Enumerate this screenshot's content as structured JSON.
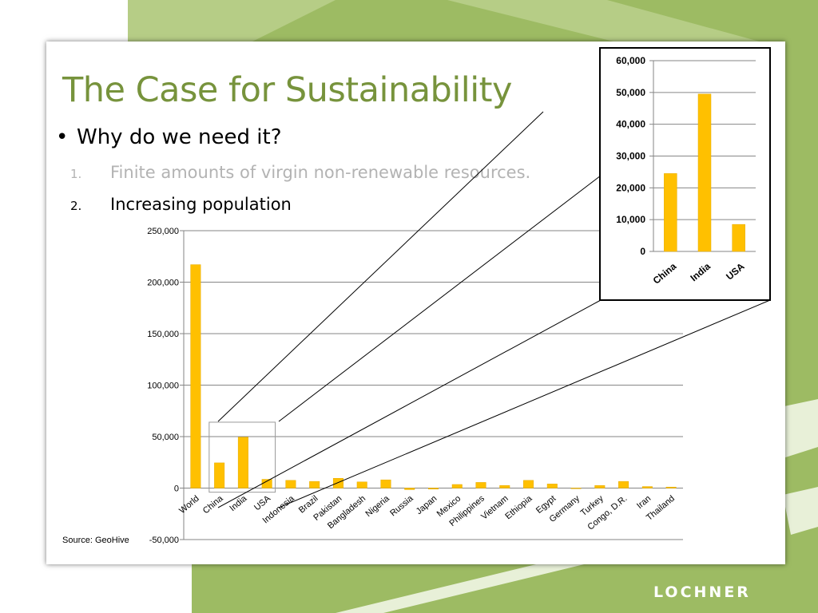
{
  "slide": {
    "title": "The Case for Sustainability",
    "bullet": "Why do we need it?",
    "items": [
      {
        "num": "1.",
        "text": "Finite amounts of virgin non-renewable resources."
      },
      {
        "num": "2.",
        "text": "Increasing  population"
      }
    ],
    "source": "Source: GeoHive",
    "brand": "LOCHNER"
  },
  "colors": {
    "accent": "#77933c",
    "bar": "#ffc000",
    "background": "#9dbb63"
  },
  "chart_data": [
    {
      "type": "bar",
      "categories": [
        "World",
        "China",
        "India",
        "USA",
        "Indonesia",
        "Brazil",
        "Pakistan",
        "Bangladesh",
        "Nigeria",
        "Russia",
        "Japan",
        "Mexico",
        "Philippines",
        "Vietnam",
        "Ethiopia",
        "Egypt",
        "Germany",
        "Turkey",
        "Congo, D.R.",
        "Iran",
        "Thailand"
      ],
      "values": [
        217000,
        24500,
        49500,
        8500,
        7500,
        6500,
        9500,
        6000,
        8000,
        -1500,
        -1000,
        3500,
        5500,
        2500,
        7500,
        4000,
        -500,
        2500,
        6500,
        1500,
        1000
      ],
      "ylim": [
        -50000,
        250000
      ],
      "yticks": [
        -50000,
        0,
        50000,
        100000,
        150000,
        200000,
        250000
      ],
      "ytick_labels": [
        "-50,000",
        "0",
        "50,000",
        "100,000",
        "150,000",
        "200,000",
        "250,000"
      ],
      "grid": true
    },
    {
      "type": "bar",
      "categories": [
        "China",
        "India",
        "USA"
      ],
      "values": [
        24500,
        49500,
        8500
      ],
      "ylim": [
        0,
        60000
      ],
      "yticks": [
        0,
        10000,
        20000,
        30000,
        40000,
        50000,
        60000
      ],
      "ytick_labels": [
        "0",
        "10,000",
        "20,000",
        "30,000",
        "40,000",
        "50,000",
        "60,000"
      ],
      "grid": true
    }
  ]
}
